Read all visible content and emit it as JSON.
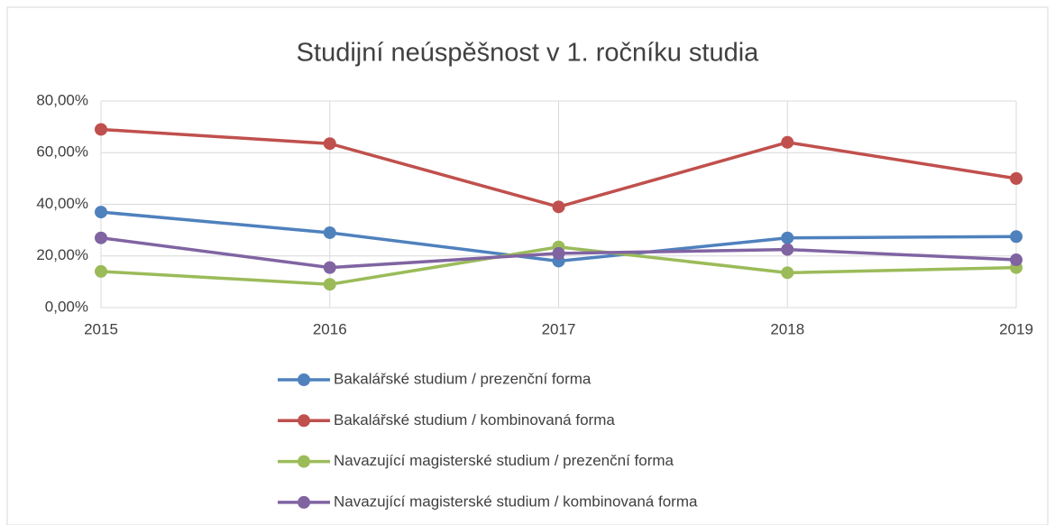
{
  "chart_data": {
    "type": "line",
    "title": "Studijní neúspěšnost v 1. ročníku studia",
    "x": [
      2015,
      2016,
      2017,
      2018,
      2019
    ],
    "xlim": [
      2015,
      2019
    ],
    "xticks": [
      2015,
      2016,
      2017,
      2018,
      2019
    ],
    "ylim": [
      0,
      80
    ],
    "yticks": [
      {
        "value": 0,
        "label": "0,00%"
      },
      {
        "value": 20,
        "label": "20,00%"
      },
      {
        "value": 40,
        "label": "40,00%"
      },
      {
        "value": 60,
        "label": "60,00%"
      },
      {
        "value": 80,
        "label": "80,00%"
      }
    ],
    "grid": true,
    "legend": "bottom",
    "series": [
      {
        "name": "Bakalářské studium / prezenční forma",
        "color": "#4f81bd",
        "values": [
          37.0,
          29.0,
          18.0,
          27.0,
          27.5
        ]
      },
      {
        "name": "Bakalářské studium / kombinovaná forma",
        "color": "#c0504d",
        "values": [
          69.0,
          63.5,
          39.0,
          64.0,
          50.0
        ]
      },
      {
        "name": "Navazující magisterské studium / prezenční forma",
        "color": "#9bbb59",
        "values": [
          14.0,
          9.0,
          23.5,
          13.5,
          15.5
        ]
      },
      {
        "name": "Navazující magisterské studium / kombinovaná forma",
        "color": "#8064a2",
        "values": [
          27.0,
          15.5,
          21.0,
          22.5,
          18.5
        ]
      }
    ]
  }
}
